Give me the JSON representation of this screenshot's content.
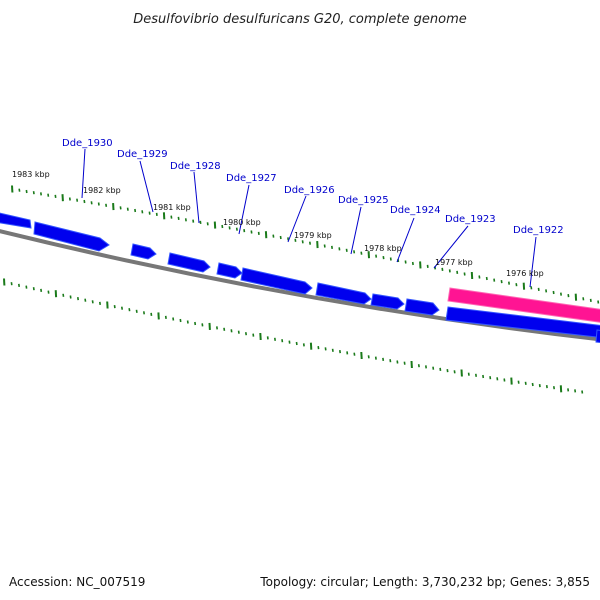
{
  "title": "Desulfovibrio desulfuricans G20, complete genome",
  "footer": {
    "accession": "Accession: NC_007519",
    "summary": "Topology: circular; Length: 3,730,232 bp; Genes: 3,855"
  },
  "colors": {
    "gene": "#0000ee",
    "gene_shadow": "#3355ff",
    "highlight": "#ff1493",
    "backbone": "#777777",
    "tick": "#1a7a1a",
    "leader": "#0000cc"
  },
  "genes": [
    {
      "label": "Dde_1930"
    },
    {
      "label": "Dde_1929"
    },
    {
      "label": "Dde_1928"
    },
    {
      "label": "Dde_1927"
    },
    {
      "label": "Dde_1926"
    },
    {
      "label": "Dde_1925"
    },
    {
      "label": "Dde_1924"
    },
    {
      "label": "Dde_1923"
    },
    {
      "label": "Dde_1922"
    }
  ],
  "kbp_labels": [
    {
      "label": "1983 kbp"
    },
    {
      "label": "1982 kbp"
    },
    {
      "label": "1981 kbp"
    },
    {
      "label": "1980 kbp"
    },
    {
      "label": "1979 kbp"
    },
    {
      "label": "1978 kbp"
    },
    {
      "label": "1977 kbp"
    },
    {
      "label": "1976 kbp"
    }
  ]
}
